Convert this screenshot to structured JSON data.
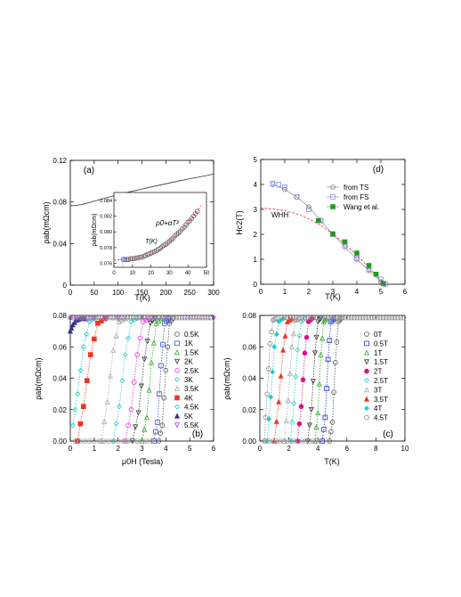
{
  "figure": {
    "panels": [
      {
        "label": "(a)",
        "xlabel": "T(K)",
        "ylabel": "ρab(mΩcm)",
        "xticks": [
          "0",
          "50",
          "100",
          "150",
          "200",
          "250",
          "300"
        ],
        "yticks": [
          "0",
          "0.04",
          "0.08",
          "0.12"
        ],
        "inset": {
          "xlabel": "T(K)",
          "ylabel": "ρab(mΩcm)",
          "xticks": [
            "0",
            "10",
            "20",
            "30",
            "40",
            "50"
          ],
          "yticks": [
            "0.076",
            "0.078",
            "0.080",
            "0.082",
            "0.084"
          ],
          "fit_label": "ρ0+αT²"
        }
      },
      {
        "label": "(d)",
        "xlabel": "T(K)",
        "ylabel": "Hc2(T)",
        "xticks": [
          "0",
          "1",
          "2",
          "3",
          "4",
          "5",
          "6"
        ],
        "yticks": [
          "0",
          "1",
          "2",
          "3",
          "4",
          "5"
        ],
        "annotation": "WHH",
        "legend": [
          "from TS",
          "from FS",
          "Wang et al."
        ]
      },
      {
        "label": "(b)",
        "xlabel": "μ0H (Tesla)",
        "ylabel": "ρab(mΩcm)",
        "xticks": [
          "0",
          "1",
          "2",
          "3",
          "4",
          "5",
          "6"
        ],
        "yticks": [
          "0.00",
          "0.02",
          "0.04",
          "0.06",
          "0.08"
        ],
        "legend": [
          "0.5K",
          "1K",
          "1.5K",
          "2K",
          "2.5K",
          "3K",
          "3.5K",
          "4K",
          "4.5K",
          "5K",
          "5.5K"
        ]
      },
      {
        "label": "(c)",
        "xlabel": "T(K)",
        "ylabel": "ρab(mΩcm)",
        "xticks": [
          "0",
          "2",
          "4",
          "6",
          "8",
          "10"
        ],
        "yticks": [
          "0.00",
          "0.02",
          "0.04",
          "0.06",
          "0.08"
        ],
        "legend": [
          "0T",
          "0.5T",
          "1T",
          "1.5T",
          "2T",
          "2.5T",
          "3T",
          "3.5T",
          "4T",
          "4.5T"
        ]
      }
    ]
  },
  "chart_data": [
    {
      "type": "line",
      "panel": "(a)",
      "xlim": [
        0,
        300
      ],
      "ylim": [
        0,
        0.12
      ],
      "series": [
        {
          "x": [
            0,
            5,
            10,
            20,
            30,
            40,
            50,
            60,
            80,
            100,
            125,
            150,
            175,
            200,
            225,
            250,
            275,
            300
          ],
          "values": [
            0.0765,
            0.0765,
            0.0765,
            0.0772,
            0.0782,
            0.0795,
            0.0808,
            0.082,
            0.0845,
            0.087,
            0.0898,
            0.0925,
            0.095,
            0.0975,
            0.1,
            0.1023,
            0.1045,
            0.1068
          ]
        }
      ],
      "inset": {
        "type": "scatter",
        "xlim": [
          0,
          50
        ],
        "ylim": [
          0.0755,
          0.085
        ],
        "series": [
          {
            "x": [
              5,
              6,
              7,
              8,
              9,
              10,
              11,
              12,
              13,
              14,
              15,
              16,
              17,
              18,
              19,
              20,
              21,
              22,
              23,
              24,
              25,
              26,
              27,
              28,
              29,
              30,
              31,
              32,
              33,
              34,
              35,
              36,
              37,
              38,
              39,
              40,
              41,
              42,
              43,
              44,
              45
            ],
            "values": [
              0.0765,
              0.0765,
              0.0765,
              0.0765,
              0.0766,
              0.0766,
              0.0766,
              0.0767,
              0.0767,
              0.0768,
              0.0768,
              0.0769,
              0.077,
              0.0771,
              0.0772,
              0.0773,
              0.0774,
              0.0775,
              0.0776,
              0.0778,
              0.0779,
              0.0781,
              0.0783,
              0.0784,
              0.0786,
              0.0788,
              0.079,
              0.0792,
              0.0795,
              0.0797,
              0.0799,
              0.0801,
              0.0804,
              0.0806,
              0.0809,
              0.0812,
              0.0814,
              0.0817,
              0.082,
              0.0823,
              0.0826
            ]
          },
          {
            "x": [
              0,
              5,
              10,
              15,
              20,
              25,
              30,
              35,
              40,
              45,
              47
            ],
            "values": [
              0.0764,
              0.0765,
              0.0766,
              0.0768,
              0.0772,
              0.0778,
              0.0787,
              0.0798,
              0.0811,
              0.0826,
              0.0833
            ]
          }
        ]
      }
    },
    {
      "type": "scatter",
      "panel": "(d)",
      "xlim": [
        0,
        6
      ],
      "ylim": [
        0,
        5
      ],
      "series": [
        {
          "name": "from TS",
          "x": [
            0.5,
            1,
            1.5,
            2,
            2.5,
            3,
            3.5,
            4,
            4.5,
            5
          ],
          "values": [
            4.0,
            3.8,
            3.5,
            3.1,
            2.55,
            2.0,
            1.5,
            1.0,
            0.55,
            0.1
          ]
        },
        {
          "name": "from FS",
          "x": [
            0.5,
            0.75,
            1.0,
            1.5,
            2.0,
            2.5,
            3.0,
            3.5,
            4.0,
            4.5,
            5.0,
            5.2
          ],
          "values": [
            4.05,
            4.0,
            3.9,
            3.5,
            3.0,
            2.55,
            2.0,
            1.55,
            1.05,
            0.6,
            0.2,
            0.0
          ]
        },
        {
          "name": "Wang et al.",
          "x": [
            2.4,
            3.0,
            3.5,
            4.0,
            4.5,
            4.8,
            5.1
          ],
          "values": [
            2.55,
            2.02,
            1.7,
            1.25,
            0.75,
            0.4,
            0.03
          ]
        },
        {
          "name": "WHH",
          "x": [
            0,
            0.5,
            1,
            1.5,
            2,
            2.5,
            3,
            3.5,
            4,
            4.5,
            5,
            5.2
          ],
          "values": [
            3.05,
            3.02,
            2.95,
            2.82,
            2.62,
            2.36,
            2.02,
            1.62,
            1.16,
            0.66,
            0.16,
            0.0
          ]
        }
      ]
    },
    {
      "type": "line",
      "panel": "(b)",
      "xlim": [
        0,
        6
      ],
      "ylim": [
        0,
        0.08
      ],
      "series": [
        {
          "name": "0.5K",
          "x": [
            3.7,
            3.85,
            4.0,
            4.15,
            4.3
          ],
          "values": [
            0,
            0.01,
            0.045,
            0.075,
            0.078
          ]
        },
        {
          "name": "1K",
          "x": [
            3.5,
            3.65,
            3.8,
            3.95,
            4.1
          ],
          "values": [
            0,
            0.012,
            0.048,
            0.075,
            0.078
          ]
        },
        {
          "name": "1.5K",
          "x": [
            3.0,
            3.2,
            3.4,
            3.6,
            3.8
          ],
          "values": [
            0,
            0.015,
            0.05,
            0.075,
            0.078
          ]
        },
        {
          "name": "2K",
          "x": [
            2.6,
            2.85,
            3.1,
            3.35,
            3.55
          ],
          "values": [
            0,
            0.018,
            0.052,
            0.075,
            0.078
          ]
        },
        {
          "name": "2.5K",
          "x": [
            2.3,
            2.55,
            2.8,
            3.05,
            3.3
          ],
          "values": [
            0,
            0.02,
            0.055,
            0.076,
            0.078
          ]
        },
        {
          "name": "3K",
          "x": [
            1.8,
            2.05,
            2.3,
            2.55,
            2.8
          ],
          "values": [
            0,
            0.022,
            0.055,
            0.076,
            0.078
          ]
        },
        {
          "name": "3.5K",
          "x": [
            1.3,
            1.55,
            1.8,
            2.05,
            2.3
          ],
          "values": [
            0,
            0.025,
            0.058,
            0.076,
            0.078
          ]
        },
        {
          "name": "4K",
          "x": [
            0.3,
            0.55,
            0.85,
            1.15,
            1.45
          ],
          "values": [
            0,
            0.022,
            0.055,
            0.075,
            0.078
          ]
        },
        {
          "name": "4.5K",
          "x": [
            0.1,
            0.3,
            0.55,
            0.8,
            1.0
          ],
          "values": [
            0.01,
            0.03,
            0.06,
            0.076,
            0.078
          ]
        },
        {
          "name": "5K",
          "x": [
            0.0,
            0.1,
            0.25,
            0.4,
            0.6
          ],
          "values": [
            0.07,
            0.074,
            0.077,
            0.078,
            0.078
          ]
        },
        {
          "name": "5.5K",
          "x": [
            0.0,
            0.5,
            1.0,
            2.0,
            6.0
          ],
          "values": [
            0.078,
            0.078,
            0.078,
            0.078,
            0.078
          ]
        }
      ]
    },
    {
      "type": "line",
      "panel": "(c)",
      "xlim": [
        0,
        10
      ],
      "ylim": [
        0,
        0.08
      ],
      "series": [
        {
          "name": "0T",
          "x": [
            4.8,
            5.0,
            5.2,
            5.4,
            5.6
          ],
          "values": [
            0,
            0.012,
            0.05,
            0.076,
            0.078
          ]
        },
        {
          "name": "0.5T",
          "x": [
            4.3,
            4.5,
            4.7,
            4.9,
            5.1
          ],
          "values": [
            0,
            0.015,
            0.052,
            0.076,
            0.078
          ]
        },
        {
          "name": "1T",
          "x": [
            3.8,
            4.0,
            4.2,
            4.4,
            4.6
          ],
          "values": [
            0,
            0.018,
            0.055,
            0.076,
            0.078
          ]
        },
        {
          "name": "1.5T",
          "x": [
            3.3,
            3.55,
            3.8,
            4.0,
            4.2
          ],
          "values": [
            0,
            0.02,
            0.056,
            0.076,
            0.078
          ]
        },
        {
          "name": "2T",
          "x": [
            2.6,
            2.85,
            3.1,
            3.35,
            3.6
          ],
          "values": [
            0,
            0.022,
            0.056,
            0.076,
            0.078
          ]
        },
        {
          "name": "2.5T",
          "x": [
            2.1,
            2.35,
            2.6,
            2.85,
            3.1
          ],
          "values": [
            0,
            0.024,
            0.058,
            0.076,
            0.078
          ]
        },
        {
          "name": "3T",
          "x": [
            1.7,
            1.95,
            2.2,
            2.45,
            2.7
          ],
          "values": [
            0,
            0.026,
            0.06,
            0.077,
            0.078
          ]
        },
        {
          "name": "3.5T",
          "x": [
            1.0,
            1.3,
            1.6,
            1.9,
            2.2
          ],
          "values": [
            0,
            0.025,
            0.058,
            0.076,
            0.078
          ]
        },
        {
          "name": "4T",
          "x": [
            0.5,
            0.75,
            1.0,
            1.3,
            1.6
          ],
          "values": [
            0,
            0.028,
            0.06,
            0.076,
            0.078
          ]
        },
        {
          "name": "4.5T",
          "x": [
            0.3,
            0.5,
            0.7,
            0.9,
            1.1
          ],
          "values": [
            0,
            0.03,
            0.062,
            0.077,
            0.078
          ]
        }
      ]
    }
  ],
  "colors": {
    "0.5K": "#555555",
    "1K": "#3355cc",
    "1.5K": "#33aa33",
    "2K": "#333333",
    "2.5K": "#dd33dd",
    "3K": "#33cccc",
    "3.5K": "#aaaaaa",
    "4K": "#ee3322",
    "4.5K": "#22cccc",
    "5K": "#333388",
    "5.5K": "#aa44ee",
    "0T": "#555555",
    "0.5T": "#2233cc",
    "1T": "#33aa33",
    "1.5T": "#333333",
    "2T": "#dd1188",
    "2.5T": "#33cccc",
    "3T": "#aaaaaa",
    "3.5T": "#ee3322",
    "4T": "#22cccc",
    "4.5T": "#888888",
    "from TS": "#777777",
    "from FS": "#8888ee",
    "Wang et al.": "#229922",
    "WHH": "#dd2233"
  }
}
